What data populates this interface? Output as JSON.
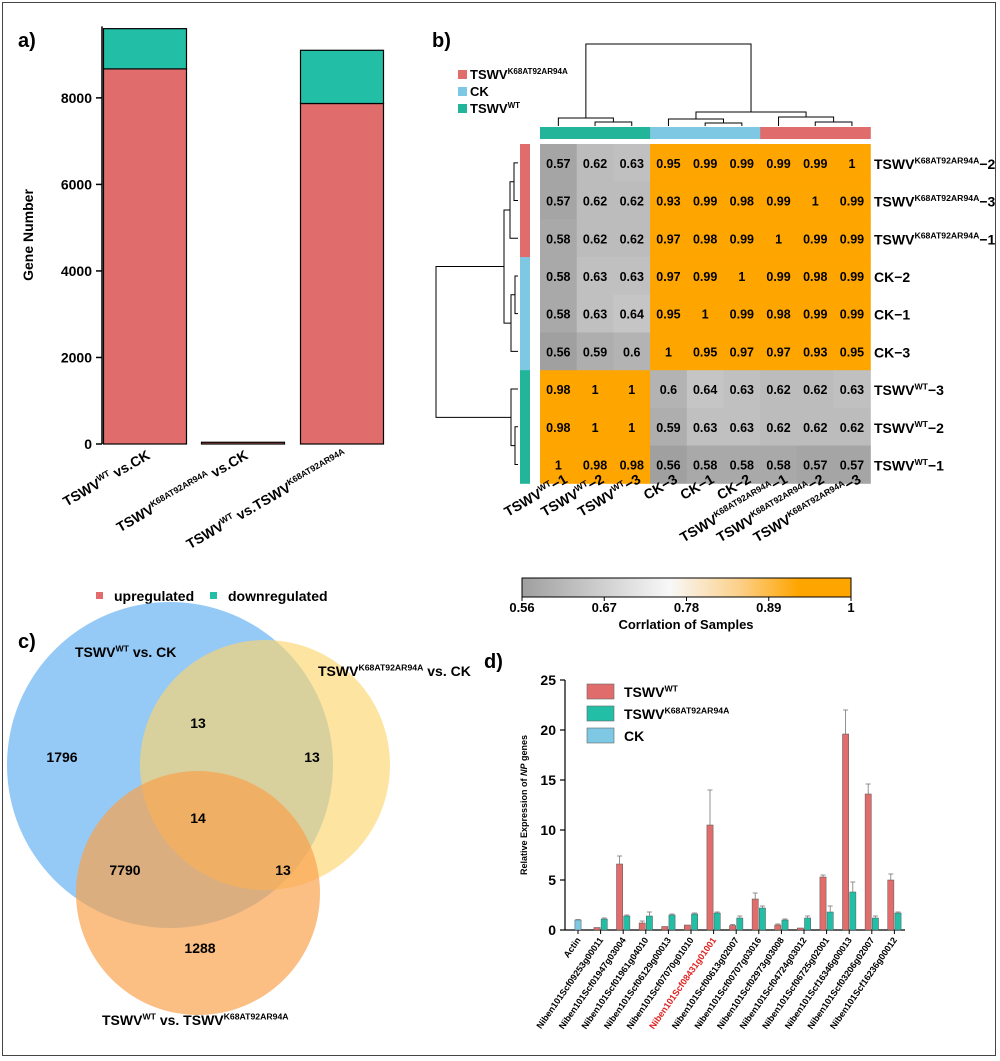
{
  "panels": {
    "a": {
      "label": "a)"
    },
    "b": {
      "label": "b)"
    },
    "c": {
      "label": "c)"
    },
    "d": {
      "label": "d)"
    }
  },
  "colors": {
    "up": "#e06c6c",
    "down": "#22bfa6",
    "wt": "#22b59a",
    "ck": "#7ec8e3",
    "mut": "#e06c6c",
    "venn_blue": "#82bff5",
    "venn_yellow": "#fcd56e",
    "venn_orange": "#f9a24f"
  },
  "chart_data": [
    {
      "id": "a",
      "type": "bar",
      "stacked": true,
      "ylabel": "Gene Number",
      "ylim": [
        0,
        9800
      ],
      "yticks": [
        0,
        2000,
        4000,
        6000,
        8000
      ],
      "categories": [
        {
          "main": "TSWV",
          "sup": "WT",
          "rest": " vs.CK",
          "sup2": "",
          "tail": ""
        },
        {
          "main": "TSWV",
          "sup": "K68AT92AR94A",
          "rest": " vs.CK",
          "sup2": "",
          "tail": ""
        },
        {
          "main": "TSWV",
          "sup": "WT",
          "rest": " vs.TSWV",
          "sup2": "K68AT92AR94A",
          "tail": ""
        }
      ],
      "series": [
        {
          "name": "upregulated",
          "values": [
            8670,
            40,
            7870
          ]
        },
        {
          "name": "downregulated",
          "values": [
            930,
            0,
            1230
          ]
        }
      ],
      "legend": [
        "upregulated",
        "downregulated"
      ]
    },
    {
      "id": "b",
      "type": "heatmap",
      "colorbar_label": "Corrlation of Samples",
      "colorbar_ticks": [
        "0.56",
        "0.67",
        "0.78",
        "0.89",
        "1"
      ],
      "legend": [
        {
          "main": "TSWV",
          "sup": "K68AT92AR94A"
        },
        {
          "main": "CK",
          "sup": ""
        },
        {
          "main": "TSWV",
          "sup": "WT"
        }
      ],
      "columns": [
        {
          "main": "TSWV",
          "sup": "WT",
          "tail": "−1"
        },
        {
          "main": "TSWV",
          "sup": "WT",
          "tail": "−2"
        },
        {
          "main": "TSWV",
          "sup": "WT",
          "tail": "−3"
        },
        {
          "main": "CK−3",
          "sup": "",
          "tail": ""
        },
        {
          "main": "CK−1",
          "sup": "",
          "tail": ""
        },
        {
          "main": "CK−2",
          "sup": "",
          "tail": ""
        },
        {
          "main": "TSWV",
          "sup": "K68AT92AR94A",
          "tail": "−1"
        },
        {
          "main": "TSWV",
          "sup": "K68AT92AR94A",
          "tail": "−2"
        },
        {
          "main": "TSWV",
          "sup": "K68AT92AR94A",
          "tail": "−3"
        }
      ],
      "rows": [
        {
          "main": "TSWV",
          "sup": "K68AT92AR94A",
          "tail": "−2"
        },
        {
          "main": "TSWV",
          "sup": "K68AT92AR94A",
          "tail": "−3"
        },
        {
          "main": "TSWV",
          "sup": "K68AT92AR94A",
          "tail": "−1"
        },
        {
          "main": "CK−2",
          "sup": "",
          "tail": ""
        },
        {
          "main": "CK−1",
          "sup": "",
          "tail": ""
        },
        {
          "main": "CK−3",
          "sup": "",
          "tail": ""
        },
        {
          "main": "TSWV",
          "sup": "WT",
          "tail": "−3"
        },
        {
          "main": "TSWV",
          "sup": "WT",
          "tail": "−2"
        },
        {
          "main": "TSWV",
          "sup": "WT",
          "tail": "−1"
        }
      ],
      "values": [
        [
          0.57,
          0.62,
          0.63,
          0.95,
          0.99,
          0.99,
          0.99,
          0.99,
          1
        ],
        [
          0.57,
          0.62,
          0.62,
          0.93,
          0.99,
          0.98,
          0.99,
          1,
          0.99
        ],
        [
          0.58,
          0.62,
          0.62,
          0.97,
          0.98,
          0.99,
          1,
          0.99,
          0.99
        ],
        [
          0.58,
          0.63,
          0.63,
          0.97,
          0.99,
          1,
          0.99,
          0.98,
          0.99
        ],
        [
          0.58,
          0.63,
          0.64,
          0.95,
          1,
          0.99,
          0.98,
          0.99,
          0.99
        ],
        [
          0.56,
          0.59,
          0.6,
          1,
          0.95,
          0.97,
          0.97,
          0.93,
          0.95
        ],
        [
          0.98,
          1,
          1,
          0.6,
          0.64,
          0.63,
          0.62,
          0.62,
          0.63
        ],
        [
          0.98,
          1,
          1,
          0.59,
          0.63,
          0.63,
          0.62,
          0.62,
          0.62
        ],
        [
          1,
          0.98,
          0.98,
          0.56,
          0.58,
          0.58,
          0.58,
          0.57,
          0.57
        ]
      ]
    },
    {
      "id": "c",
      "type": "venn",
      "sets": [
        {
          "main": "TSWV",
          "sup": "WT",
          "rest": " vs. CK",
          "sup2": ""
        },
        {
          "main": "TSWV",
          "sup": "K68AT92AR94A",
          "rest": " vs. CK",
          "sup2": ""
        },
        {
          "main": "TSWV",
          "sup": "WT",
          "rest": " vs. TSWV",
          "sup2": "K68AT92AR94A"
        }
      ],
      "regions": {
        "only_a": "1796",
        "only_b": "13",
        "only_c": "1288",
        "ab": "13",
        "ac": "7790",
        "bc": "13",
        "abc": "14"
      }
    },
    {
      "id": "d",
      "type": "bar",
      "ylabel_pre": "Relative Expression of ",
      "ylabel_italic": "NP",
      "ylabel_post": " genes",
      "ylim": [
        0,
        25
      ],
      "yticks": [
        0,
        5,
        10,
        15,
        20,
        25
      ],
      "categories": [
        "Actin",
        "Niben101Scf09253g00011",
        "Niben101Scf01947g03004",
        "Niben101Scf01961g04010",
        "Niben101Scf06129g00013",
        "Niben101Scf07070g01010",
        "Niben101Scf08431g01001",
        "Niben101Scf00613g02007",
        "Niben101Scf00707g03016",
        "Niben101Scf02973g03008",
        "Niben101Scf04724g03012",
        "Niben101Scf06725g02001",
        "Niben101Scf16346g00013",
        "Niben101Scf03206g02007",
        "Niben101Scf16236g00012"
      ],
      "highlight_index": 6,
      "highlight_color": "#e0201f",
      "legend": [
        {
          "main": "TSWV",
          "sup": "WT"
        },
        {
          "main": "TSWV",
          "sup": "K68AT92AR94A"
        },
        {
          "main": "CK",
          "sup": ""
        }
      ],
      "series": [
        {
          "values": [
            0,
            0.25,
            6.6,
            0.7,
            0.35,
            0.5,
            10.5,
            0.45,
            3.1,
            0.5,
            0.2,
            5.3,
            19.6,
            13.6,
            5.0
          ],
          "errors": [
            0,
            0,
            0.8,
            0.2,
            0,
            0,
            3.5,
            0.1,
            0.6,
            0.1,
            0,
            0.2,
            2.4,
            1.0,
            0.6
          ]
        },
        {
          "values": [
            0,
            1.1,
            1.4,
            1.4,
            1.5,
            1.6,
            1.7,
            1.2,
            2.2,
            1.0,
            1.2,
            1.8,
            3.8,
            1.2,
            1.7
          ],
          "errors": [
            0,
            0.1,
            0.1,
            0.4,
            0.1,
            0.1,
            0.1,
            0.2,
            0.2,
            0.1,
            0.2,
            0.6,
            1.0,
            0.2,
            0.1
          ]
        },
        {
          "values": [
            1.0,
            0,
            0,
            0,
            0,
            0,
            0,
            0,
            0,
            0,
            0,
            0,
            0,
            0,
            0
          ],
          "errors": [
            0.05,
            0,
            0,
            0,
            0,
            0,
            0,
            0,
            0,
            0,
            0,
            0,
            0,
            0,
            0
          ]
        }
      ]
    }
  ]
}
